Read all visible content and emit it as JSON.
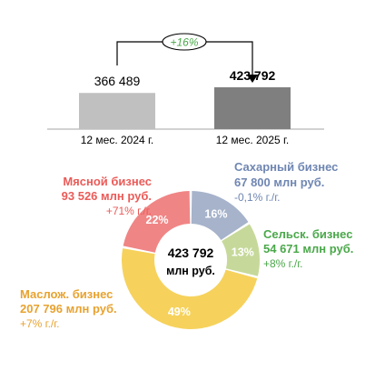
{
  "chart_data": [
    {
      "type": "bar",
      "categories": [
        "12 мес. 2024 г.",
        "12 мес. 2025 г."
      ],
      "values": [
        366489,
        423792
      ],
      "value_labels": [
        "366 489",
        "423 792"
      ],
      "colors": [
        "#c0c0c0",
        "#7f7f7f"
      ],
      "growth_label": "+16%",
      "growth_color": "#4aa84a",
      "title": "",
      "xlabel": "",
      "ylabel": ""
    },
    {
      "type": "pie",
      "variant": "donut",
      "center_label": [
        "423 792",
        "млн руб."
      ],
      "slices": [
        {
          "name": "Сахарный бизнес",
          "share": 16,
          "share_label": "16%",
          "amount": "67 800 млн руб.",
          "change": "-0,1% г./г.",
          "color": "#a6b3cb",
          "text_color": "#6f86b2"
        },
        {
          "name": "Сельск. бизнес",
          "share": 13,
          "share_label": "13%",
          "amount": "54 671 млн руб.",
          "change": "+8% г./г.",
          "color": "#c6d99a",
          "text_color": "#4aa84a"
        },
        {
          "name": "Маслож. бизнес",
          "share": 49,
          "share_label": "49%",
          "amount": "207 796 млн руб.",
          "change": "+7% г./г.",
          "color": "#f6d25c",
          "text_color": "#e8a22f"
        },
        {
          "name": "Мясной бизнес",
          "share": 22,
          "share_label": "22%",
          "amount": "93 526 млн руб.",
          "change": "+71% г./г.",
          "color": "#f08585",
          "text_color": "#ea5b58"
        }
      ]
    }
  ]
}
